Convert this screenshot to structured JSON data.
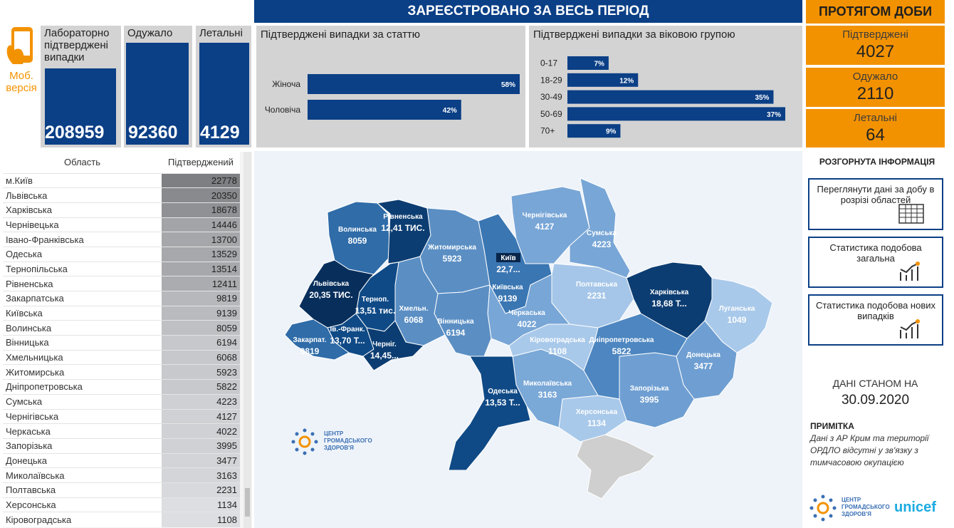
{
  "header": {
    "title": "ЗАРЕЄСТРОВАНО ЗА ВЕСЬ ПЕРІОД",
    "daily_title": "ПРОТЯГОМ ДОБИ",
    "mobile": "Моб. версія"
  },
  "totals": [
    {
      "label": "Лабораторно підтверджені випадки",
      "value": 208959
    },
    {
      "label": "Одужало",
      "value": 92360
    },
    {
      "label": "Летальні",
      "value": 4129
    }
  ],
  "daily": [
    {
      "label": "Підтверджені",
      "value": 4027
    },
    {
      "label": "Одужало",
      "value": 2110
    },
    {
      "label": "Летальні",
      "value": 64
    }
  ],
  "chart_data": [
    {
      "type": "bar",
      "title": "Підтверджені випадки за статтю",
      "categories": [
        "Жіноча",
        "Чоловіча"
      ],
      "values": [
        58,
        42
      ],
      "value_labels": [
        "58%",
        "42%"
      ],
      "color": "#0b3f86"
    },
    {
      "type": "bar",
      "title": "Підтверджені випадки за віковою групою",
      "categories": [
        "0-17",
        "18-29",
        "30-49",
        "50-69",
        "70+"
      ],
      "values": [
        7,
        12,
        35,
        37,
        9
      ],
      "value_labels": [
        "7%",
        "12%",
        "35%",
        "37%",
        "9%"
      ],
      "color": "#0b3f86"
    }
  ],
  "table": {
    "columns": [
      "Область",
      "Підтверджений"
    ],
    "rows": [
      [
        "м.Київ",
        22778
      ],
      [
        "Львівська",
        20350
      ],
      [
        "Харківська",
        18678
      ],
      [
        "Чернівецька",
        14446
      ],
      [
        "Івано-Франківська",
        13700
      ],
      [
        "Одеська",
        13529
      ],
      [
        "Тернопільська",
        13514
      ],
      [
        "Рівненська",
        12411
      ],
      [
        "Закарпатська",
        9819
      ],
      [
        "Київська",
        9139
      ],
      [
        "Волинська",
        8059
      ],
      [
        "Вінницька",
        6194
      ],
      [
        "Хмельницька",
        6068
      ],
      [
        "Житомирська",
        5923
      ],
      [
        "Дніпропетровська",
        5822
      ],
      [
        "Сумська",
        4223
      ],
      [
        "Чернігівська",
        4127
      ],
      [
        "Черкаська",
        4022
      ],
      [
        "Запорізька",
        3995
      ],
      [
        "Донецька",
        3477
      ],
      [
        "Миколаївська",
        3163
      ],
      [
        "Полтавська",
        2231
      ],
      [
        "Херсонська",
        1134
      ],
      [
        "Кіровоградська",
        1108
      ]
    ]
  },
  "map": {
    "regions": [
      {
        "name": "Волинська",
        "label": "8059",
        "color": "#2f6ca8"
      },
      {
        "name": "Рівненська",
        "label": "12,41 ТИС.",
        "color": "#0c3d72"
      },
      {
        "name": "Житомирська",
        "label": "5923",
        "color": "#5b8fc4"
      },
      {
        "name": "Київ",
        "label": "22,7...",
        "color": "#082f5c"
      },
      {
        "name": "Київська",
        "label": "9139",
        "color": "#3a76b2"
      },
      {
        "name": "Чернігівська",
        "label": "4127",
        "color": "#78a6d6"
      },
      {
        "name": "Сумська",
        "label": "4223",
        "color": "#78a6d6"
      },
      {
        "name": "Полтавська",
        "label": "2231",
        "color": "#a5c6e8"
      },
      {
        "name": "Харківська",
        "label": "18,68 Т...",
        "color": "#0c3d72"
      },
      {
        "name": "Луганська",
        "label": "1049",
        "color": "#a9c9ea"
      },
      {
        "name": "Донецька",
        "label": "3477",
        "color": "#6f9fd2"
      },
      {
        "name": "Запорізька",
        "label": "3995",
        "color": "#6f9fd2"
      },
      {
        "name": "Херсонська",
        "label": "1134",
        "color": "#a9c9ea"
      },
      {
        "name": "Миколаївська",
        "label": "3163",
        "color": "#7aa8d7"
      },
      {
        "name": "Одеська",
        "label": "13,53 Т...",
        "color": "#0f4a86"
      },
      {
        "name": "Кіровоградська",
        "label": "1108",
        "color": "#a9c9ea"
      },
      {
        "name": "Дніпропетровська",
        "label": "5822",
        "color": "#4d86c0"
      },
      {
        "name": "Черкаська",
        "label": "4022",
        "color": "#78a6d6"
      },
      {
        "name": "Вінницька",
        "label": "6194",
        "color": "#5b8fc4"
      },
      {
        "name": "Хмельн.",
        "label": "6068",
        "color": "#5b8fc4"
      },
      {
        "name": "Терноп.",
        "label": "13,51 тис.",
        "color": "#0f4a86"
      },
      {
        "name": "Львівська",
        "label": "20,35 ТИС.",
        "color": "#082f5c"
      },
      {
        "name": "Ів.-Франк.",
        "label": "13,70 Т...",
        "color": "#0f4a86"
      },
      {
        "name": "Закарпат.",
        "label": "9819",
        "color": "#2f6ca8"
      },
      {
        "name": "Черніг.",
        "label": "14,45...",
        "color": "#0c3d72"
      }
    ],
    "logo": "ЦЕНТР ГРОМАДСЬКОГО ЗДОРОВ'Я"
  },
  "sidebar": {
    "title": "РОЗГОРНУТА ІНФОРМАЦІЯ",
    "buttons": [
      "Переглянути дані за добу в розрізі областей",
      "Статистика подобова загальна",
      "Статистика подобова нових випадків"
    ],
    "date_label": "ДАНІ СТАНОМ НА",
    "date": "30.09.2020",
    "note_title": "ПРИМІТКА",
    "note": "Дані з АР Крим та території ОРДЛО відсутні у зв'язку з тимчасовою окупацією",
    "logo": "ЦЕНТР ГРОМАДСЬКОГО ЗДОРОВ'Я",
    "unicef": "unicef"
  }
}
